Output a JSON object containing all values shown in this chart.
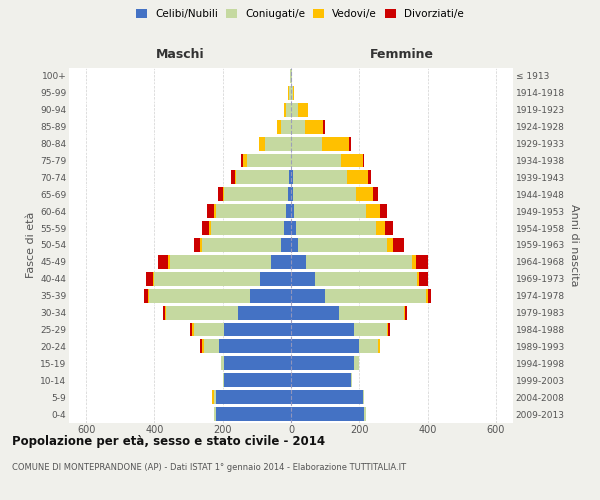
{
  "age_groups": [
    "0-4",
    "5-9",
    "10-14",
    "15-19",
    "20-24",
    "25-29",
    "30-34",
    "35-39",
    "40-44",
    "45-49",
    "50-54",
    "55-59",
    "60-64",
    "65-69",
    "70-74",
    "75-79",
    "80-84",
    "85-89",
    "90-94",
    "95-99",
    "100+"
  ],
  "birth_years": [
    "2009-2013",
    "2004-2008",
    "1999-2003",
    "1994-1998",
    "1989-1993",
    "1984-1988",
    "1979-1983",
    "1974-1978",
    "1969-1973",
    "1964-1968",
    "1959-1963",
    "1954-1958",
    "1949-1953",
    "1944-1948",
    "1939-1943",
    "1934-1938",
    "1929-1933",
    "1924-1928",
    "1919-1923",
    "1914-1918",
    "≤ 1913"
  ],
  "male": {
    "celibe": [
      220,
      220,
      195,
      195,
      210,
      195,
      155,
      120,
      90,
      60,
      30,
      20,
      15,
      10,
      5,
      0,
      0,
      0,
      0,
      0,
      0
    ],
    "coniugato": [
      5,
      5,
      5,
      10,
      45,
      90,
      210,
      295,
      310,
      295,
      230,
      215,
      205,
      185,
      155,
      130,
      75,
      30,
      15,
      5,
      2
    ],
    "vedovo": [
      0,
      5,
      0,
      0,
      5,
      5,
      5,
      5,
      5,
      5,
      5,
      5,
      5,
      5,
      5,
      10,
      20,
      10,
      5,
      3,
      0
    ],
    "divorziato": [
      0,
      0,
      0,
      0,
      5,
      5,
      5,
      10,
      20,
      30,
      20,
      20,
      20,
      15,
      10,
      5,
      0,
      0,
      0,
      0,
      0
    ]
  },
  "female": {
    "nubile": [
      215,
      210,
      175,
      185,
      200,
      185,
      140,
      100,
      70,
      45,
      20,
      15,
      10,
      5,
      5,
      0,
      0,
      0,
      0,
      0,
      0
    ],
    "coniugata": [
      5,
      5,
      5,
      15,
      55,
      95,
      190,
      295,
      300,
      310,
      260,
      235,
      210,
      185,
      160,
      145,
      90,
      40,
      20,
      5,
      2
    ],
    "vedova": [
      0,
      0,
      0,
      0,
      5,
      5,
      5,
      5,
      5,
      10,
      20,
      25,
      40,
      50,
      60,
      65,
      80,
      55,
      30,
      5,
      2
    ],
    "divorziata": [
      0,
      0,
      0,
      0,
      0,
      5,
      5,
      10,
      25,
      35,
      30,
      25,
      20,
      15,
      10,
      5,
      5,
      5,
      0,
      0,
      0
    ]
  },
  "colors": {
    "celibe": "#4472c4",
    "coniugato": "#c5d9a0",
    "vedovo": "#ffc000",
    "divorziato": "#cc0000"
  },
  "legend_labels": [
    "Celibi/Nubili",
    "Coniugati/e",
    "Vedovi/e",
    "Divorziati/e"
  ],
  "legend_colors": [
    "#4472c4",
    "#c5d9a0",
    "#ffc000",
    "#cc0000"
  ],
  "xlabel_left": "Maschi",
  "xlabel_right": "Femmine",
  "ylabel_left": "Fasce di età",
  "ylabel_right": "Anni di nascita",
  "title": "Popolazione per età, sesso e stato civile - 2014",
  "subtitle": "COMUNE DI MONTEPRANDONE (AP) - Dati ISTAT 1° gennaio 2014 - Elaborazione TUTTITALIA.IT",
  "xlim": 650,
  "bg_color": "#f0f0eb",
  "plot_bg": "#ffffff",
  "grid_color": "#cccccc"
}
